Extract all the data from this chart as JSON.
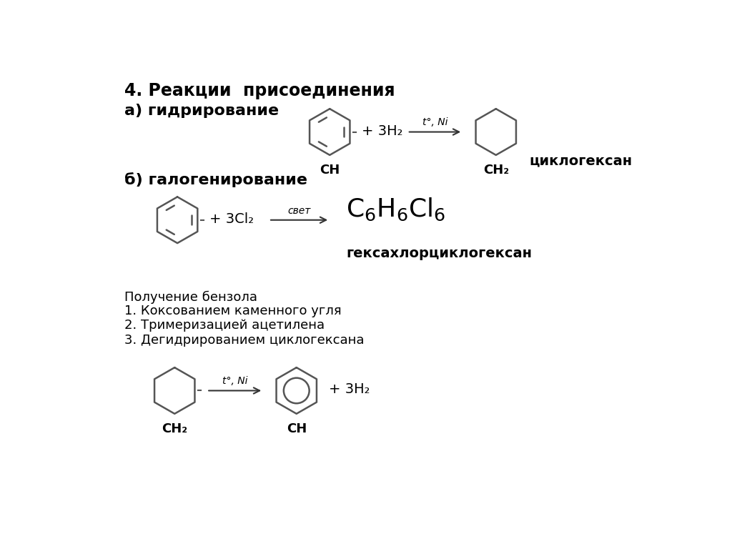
{
  "bg_color": "#ffffff",
  "text_color": "#000000",
  "section1_title": "4. Реакции  присоединения",
  "section1a": "а) гидрирование",
  "section1b": "б) галогенирование",
  "plus_3h2": "+ 3H₂",
  "arrow_label_1": "t°, Ni",
  "ch_label": "CH",
  "ch2_label": "CH₂",
  "cyclohexane_label": "циклогексан",
  "plus_3cl2": "+ 3Cl₂",
  "arrow_label_2": "свет",
  "hexachloro_label": "гексахлорциклогексан",
  "section2_title": "Получение бензола",
  "method1": "1. Коксованием каменного угля",
  "method2": "2. Тримеризацией ацетилена",
  "method3": "3. Дегидрированием циклогексана",
  "plus_3h2_bottom": "+ 3H₂",
  "arrow_label_3": "t°, Ni",
  "title_fontsize": 17,
  "subtitle_fontsize": 16,
  "label_fontsize": 13,
  "small_fontsize": 10,
  "formula_fontsize": 26,
  "bold_label_fontsize": 14
}
